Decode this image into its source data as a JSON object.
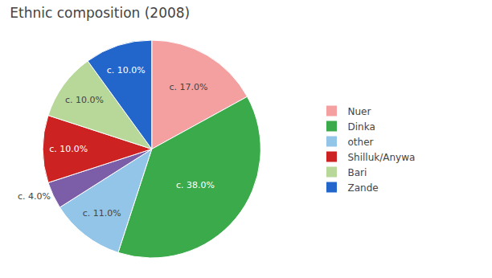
{
  "chart_data": {
    "type": "pie",
    "title": "Ethnic composition (2008)",
    "categories": [
      "Nuer",
      "Dinka",
      "other",
      null,
      "Shilluk/Anywa",
      "Bari",
      "Zande"
    ],
    "values": [
      17.0,
      38.0,
      11.0,
      4.0,
      10.0,
      10.0,
      10.0
    ],
    "value_labels": [
      "c. 17.0%",
      "c. 38.0%",
      "c. 11.0%",
      "c. 4.0%",
      "c. 10.0%",
      "c. 10.0%",
      "c. 10.0%"
    ],
    "colors": [
      "#f4a0a0",
      "#3aaa4a",
      "#92c5e8",
      "#7b5ea7",
      "#cc2222",
      "#b8d89a",
      "#2266cc"
    ],
    "data_labels": true,
    "legend": "right"
  }
}
